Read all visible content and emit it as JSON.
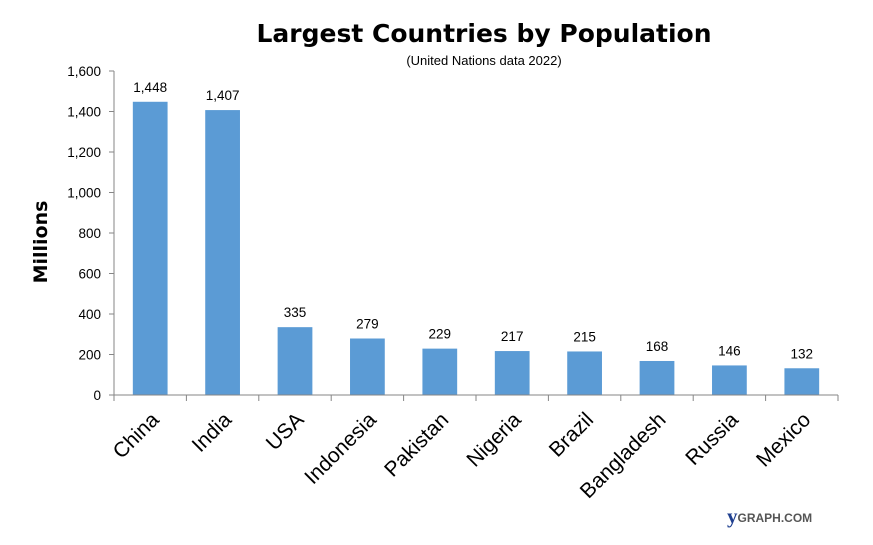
{
  "chart_data": {
    "type": "bar",
    "title": "Largest Countries by Population",
    "subtitle": "(United Nations data 2022)",
    "xlabel": "",
    "ylabel": "Millions",
    "categories": [
      "China",
      "India",
      "USA",
      "Indonesia",
      "Pakistan",
      "Nigeria",
      "Brazil",
      "Bangladesh",
      "Russia",
      "Mexico"
    ],
    "values": [
      1448,
      1407,
      335,
      279,
      229,
      217,
      215,
      168,
      146,
      132
    ],
    "value_labels": [
      "1,448",
      "1,407",
      "335",
      "279",
      "229",
      "217",
      "215",
      "168",
      "146",
      "132"
    ],
    "ylim": [
      0,
      1600
    ],
    "yticks": [
      0,
      200,
      400,
      600,
      800,
      1000,
      1200,
      1400,
      1600
    ],
    "ytick_labels": [
      "0",
      "200",
      "400",
      "600",
      "800",
      "1,000",
      "1,200",
      "1,400",
      "1,600"
    ],
    "grid": false,
    "legend": "none",
    "bar_color": "#5b9bd5"
  },
  "watermark": {
    "brand_initial": "y",
    "brand_rest": "GRAPH.COM",
    "brand_initial_color": "#1f3f8f",
    "brand_rest_color": "#555555"
  }
}
